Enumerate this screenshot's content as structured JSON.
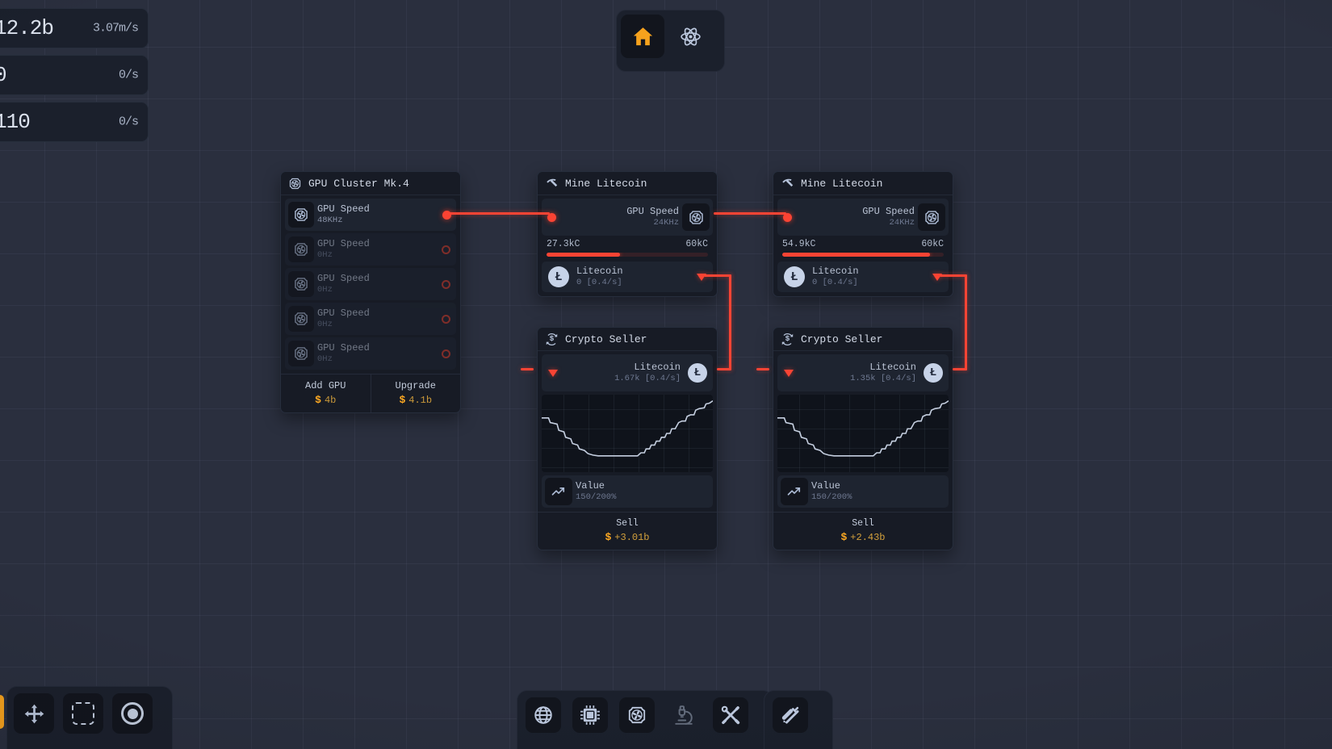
{
  "hud": {
    "resources": [
      {
        "value": "12.2b",
        "rate": "3.07m/s"
      },
      {
        "value": "0",
        "rate": "0/s"
      },
      {
        "value": "110",
        "rate": "0/s"
      }
    ]
  },
  "top_nav": {
    "buttons": [
      {
        "icon": "home-icon",
        "active": true
      },
      {
        "icon": "atom-icon",
        "active": false
      }
    ]
  },
  "glyphs": {
    "litecoin": "Ł",
    "dollar": "$"
  },
  "colors": {
    "canvas": "#2a2f3e",
    "accent_red": "#fb4434",
    "accent_orange": "#f6a21d",
    "icon_slate": "#bcc8de",
    "node_bg": "#171b25"
  },
  "nodes": {
    "gpu_cluster": {
      "title": "GPU Cluster Mk.4",
      "icon": "gpu-fan-icon",
      "outputs": [
        {
          "label": "GPU Speed",
          "value": "48KHz",
          "connected": true
        },
        {
          "label": "GPU Speed",
          "value": "0Hz",
          "connected": false
        },
        {
          "label": "GPU Speed",
          "value": "0Hz",
          "connected": false
        },
        {
          "label": "GPU Speed",
          "value": "0Hz",
          "connected": false
        },
        {
          "label": "GPU Speed",
          "value": "0Hz",
          "connected": false
        }
      ],
      "actions": [
        {
          "label": "Add GPU",
          "price": "4b"
        },
        {
          "label": "Upgrade",
          "price": "4.1b"
        }
      ]
    },
    "miner1": {
      "title": "Mine Litecoin",
      "icon": "pickaxe-icon",
      "input": {
        "label": "GPU Speed",
        "value": "24KHz"
      },
      "progress": {
        "current": "27.3kC",
        "max": "60kC",
        "pct": 45.5
      },
      "output": {
        "label": "Litecoin",
        "value": "0 [0.4/s]"
      }
    },
    "miner2": {
      "title": "Mine Litecoin",
      "icon": "pickaxe-icon",
      "input": {
        "label": "GPU Speed",
        "value": "24KHz"
      },
      "progress": {
        "current": "54.9kC",
        "max": "60kC",
        "pct": 91.5
      },
      "output": {
        "label": "Litecoin",
        "value": "0 [0.4/s]"
      }
    },
    "seller1": {
      "title": "Crypto Seller",
      "icon": "exchange-icon",
      "input": {
        "label": "Litecoin",
        "value": "1.67k [0.4/s]"
      },
      "value": {
        "label": "Value",
        "amount": "150/200%"
      },
      "sell": {
        "label": "Sell",
        "price": "+3.01b"
      }
    },
    "seller2": {
      "title": "Crypto Seller",
      "icon": "exchange-icon",
      "input": {
        "label": "Litecoin",
        "value": "1.35k [0.4/s]"
      },
      "value": {
        "label": "Value",
        "amount": "150/200%"
      },
      "sell": {
        "label": "Sell",
        "price": "+2.43b"
      }
    }
  },
  "chart_data": [
    {
      "type": "line",
      "name": "seller1-price-history",
      "grid": true,
      "x_range": [
        0,
        100
      ],
      "y_range": [
        0,
        100
      ],
      "y_axis_inverted": true,
      "note": "no axis labels shown in UI; points normalized 0-100, y from top",
      "points": [
        [
          0,
          30
        ],
        [
          4,
          30
        ],
        [
          5,
          36
        ],
        [
          9,
          38
        ],
        [
          10,
          46
        ],
        [
          13,
          48
        ],
        [
          14,
          55
        ],
        [
          17,
          57
        ],
        [
          18,
          63
        ],
        [
          21,
          65
        ],
        [
          22,
          70
        ],
        [
          25,
          72
        ],
        [
          27,
          76
        ],
        [
          30,
          78
        ],
        [
          33,
          79
        ],
        [
          56,
          79
        ],
        [
          58,
          75
        ],
        [
          60,
          75
        ],
        [
          61,
          70
        ],
        [
          63,
          70
        ],
        [
          64,
          65
        ],
        [
          66,
          65
        ],
        [
          67,
          60
        ],
        [
          69,
          60
        ],
        [
          70,
          55
        ],
        [
          72,
          55
        ],
        [
          73,
          50
        ],
        [
          75,
          50
        ],
        [
          76,
          44
        ],
        [
          78,
          44
        ],
        [
          80,
          36
        ],
        [
          82,
          34
        ],
        [
          84,
          34
        ],
        [
          85,
          28
        ],
        [
          87,
          26
        ],
        [
          89,
          26
        ],
        [
          90,
          20
        ],
        [
          92,
          18
        ],
        [
          95,
          17
        ],
        [
          96,
          12
        ],
        [
          98,
          11
        ],
        [
          100,
          8
        ]
      ]
    },
    {
      "type": "line",
      "name": "seller2-price-history",
      "grid": true,
      "x_range": [
        0,
        100
      ],
      "y_range": [
        0,
        100
      ],
      "y_axis_inverted": true,
      "note": "no axis labels shown in UI; points normalized 0-100, y from top",
      "points": [
        [
          0,
          30
        ],
        [
          4,
          30
        ],
        [
          5,
          36
        ],
        [
          9,
          38
        ],
        [
          10,
          46
        ],
        [
          13,
          48
        ],
        [
          14,
          55
        ],
        [
          17,
          57
        ],
        [
          18,
          63
        ],
        [
          21,
          65
        ],
        [
          22,
          70
        ],
        [
          25,
          72
        ],
        [
          27,
          76
        ],
        [
          30,
          78
        ],
        [
          33,
          79
        ],
        [
          56,
          79
        ],
        [
          58,
          75
        ],
        [
          60,
          75
        ],
        [
          61,
          70
        ],
        [
          63,
          70
        ],
        [
          64,
          65
        ],
        [
          66,
          65
        ],
        [
          67,
          60
        ],
        [
          69,
          60
        ],
        [
          70,
          55
        ],
        [
          72,
          55
        ],
        [
          73,
          50
        ],
        [
          75,
          50
        ],
        [
          76,
          44
        ],
        [
          78,
          44
        ],
        [
          80,
          36
        ],
        [
          82,
          34
        ],
        [
          84,
          34
        ],
        [
          85,
          28
        ],
        [
          87,
          26
        ],
        [
          89,
          26
        ],
        [
          90,
          20
        ],
        [
          92,
          18
        ],
        [
          95,
          17
        ],
        [
          96,
          12
        ],
        [
          98,
          11
        ],
        [
          100,
          8
        ]
      ]
    }
  ],
  "toolbars": {
    "bottom_left": {
      "buttons": [
        {
          "icon": "move-icon"
        },
        {
          "icon": "box-select-icon"
        },
        {
          "icon": "circle-tool-icon"
        }
      ]
    },
    "bottom_center": {
      "buttons": [
        {
          "icon": "globe-icon"
        },
        {
          "icon": "chip-icon"
        },
        {
          "icon": "gpu-fan-icon"
        },
        {
          "icon": "microscope-icon",
          "disabled": true
        },
        {
          "icon": "tools-icon"
        }
      ]
    },
    "bottom_center_secondary": {
      "buttons": [
        {
          "icon": "design-tools-icon"
        }
      ]
    }
  }
}
